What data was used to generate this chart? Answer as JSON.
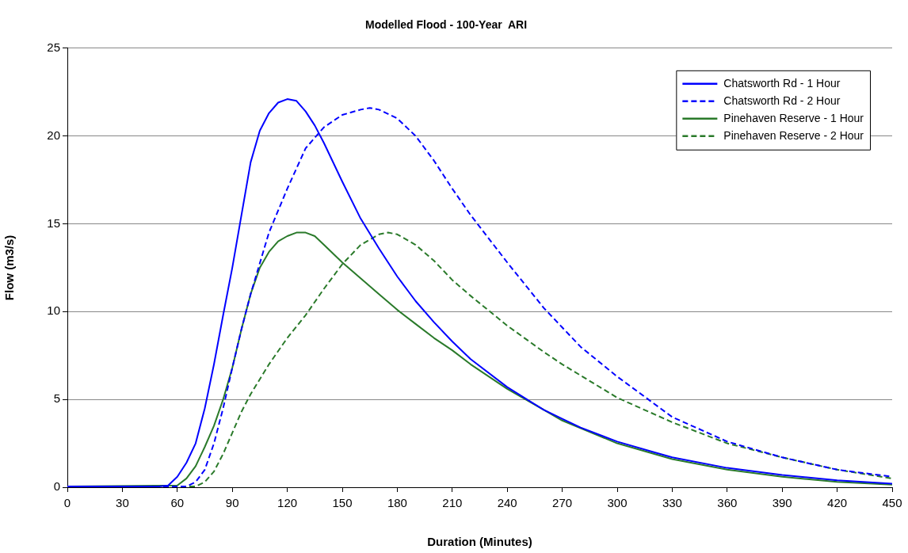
{
  "chart_data": {
    "type": "line",
    "title": "Modelled Flood - 100-Year  ARI",
    "xlabel": "Duration (Minutes)",
    "ylabel": "Flow (m3/s)",
    "xlim": [
      0,
      450
    ],
    "xticks": [
      0,
      30,
      60,
      90,
      120,
      150,
      180,
      210,
      240,
      270,
      300,
      330,
      360,
      390,
      420,
      450
    ],
    "ylim": [
      0,
      25
    ],
    "yticks": [
      0,
      5,
      10,
      15,
      20,
      25
    ],
    "grid": "y",
    "legend": "top right",
    "marker": "none",
    "series": [
      {
        "name": "Chatsworth Rd - 1 Hour",
        "color": "#0000ff",
        "line_style": "solid",
        "x": [
          0,
          50,
          55,
          60,
          65,
          70,
          75,
          80,
          85,
          90,
          95,
          100,
          105,
          110,
          115,
          120,
          125,
          130,
          135,
          140,
          150,
          160,
          170,
          180,
          190,
          200,
          210,
          220,
          240,
          260,
          270,
          280,
          300,
          320,
          330,
          360,
          390,
          420,
          450
        ],
        "values": [
          0.05,
          0.05,
          0.1,
          0.6,
          1.4,
          2.5,
          4.5,
          7,
          9.8,
          12.5,
          15.5,
          18.5,
          20.3,
          21.3,
          21.9,
          22.1,
          22,
          21.4,
          20.6,
          19.6,
          17.4,
          15.3,
          13.6,
          12,
          10.6,
          9.4,
          8.3,
          7.3,
          5.7,
          4.4,
          3.9,
          3.4,
          2.6,
          2,
          1.7,
          1.1,
          0.7,
          0.4,
          0.2
        ]
      },
      {
        "name": "Chatsworth Rd - 2 Hour",
        "color": "#0000ff",
        "line_style": "dashed",
        "x": [
          0,
          65,
          70,
          75,
          80,
          85,
          90,
          95,
          100,
          110,
          120,
          130,
          140,
          150,
          160,
          165,
          170,
          180,
          190,
          200,
          210,
          220,
          240,
          260,
          270,
          280,
          300,
          330,
          360,
          390,
          420,
          450
        ],
        "values": [
          0.05,
          0.05,
          0.3,
          1,
          2.5,
          4.5,
          6.8,
          9,
          11,
          14.5,
          17,
          19.3,
          20.5,
          21.2,
          21.5,
          21.6,
          21.5,
          21,
          20,
          18.6,
          17,
          15.5,
          12.8,
          10.2,
          9.1,
          8,
          6.3,
          4,
          2.6,
          1.7,
          1,
          0.6
        ]
      },
      {
        "name": "Pinehaven Reserve - 1 Hour",
        "color": "#2a7a2a",
        "line_style": "solid",
        "x": [
          0,
          60,
          65,
          70,
          75,
          80,
          85,
          90,
          95,
          100,
          105,
          110,
          115,
          120,
          125,
          130,
          135,
          140,
          150,
          160,
          170,
          180,
          190,
          200,
          210,
          220,
          240,
          260,
          270,
          300,
          330,
          360,
          390,
          420,
          450
        ],
        "values": [
          0.05,
          0.1,
          0.5,
          1.2,
          2.3,
          3.5,
          5,
          6.8,
          9,
          11,
          12.5,
          13.4,
          14,
          14.3,
          14.5,
          14.5,
          14.3,
          13.8,
          12.8,
          11.9,
          11,
          10.1,
          9.3,
          8.5,
          7.8,
          7,
          5.6,
          4.4,
          3.8,
          2.5,
          1.6,
          1,
          0.6,
          0.3,
          0.15
        ]
      },
      {
        "name": "Pinehaven Reserve - 2 Hour",
        "color": "#2a7a2a",
        "line_style": "dashed",
        "x": [
          0,
          70,
          75,
          80,
          85,
          90,
          95,
          100,
          110,
          120,
          130,
          140,
          150,
          160,
          170,
          175,
          180,
          190,
          200,
          210,
          220,
          240,
          260,
          270,
          300,
          330,
          360,
          390,
          420,
          450
        ],
        "values": [
          0.05,
          0.05,
          0.3,
          0.9,
          1.9,
          3.1,
          4.3,
          5.3,
          7,
          8.5,
          9.8,
          11.3,
          12.7,
          13.8,
          14.4,
          14.5,
          14.4,
          13.8,
          12.9,
          11.8,
          10.9,
          9.2,
          7.7,
          7,
          5.1,
          3.7,
          2.5,
          1.7,
          1,
          0.5
        ]
      }
    ]
  }
}
